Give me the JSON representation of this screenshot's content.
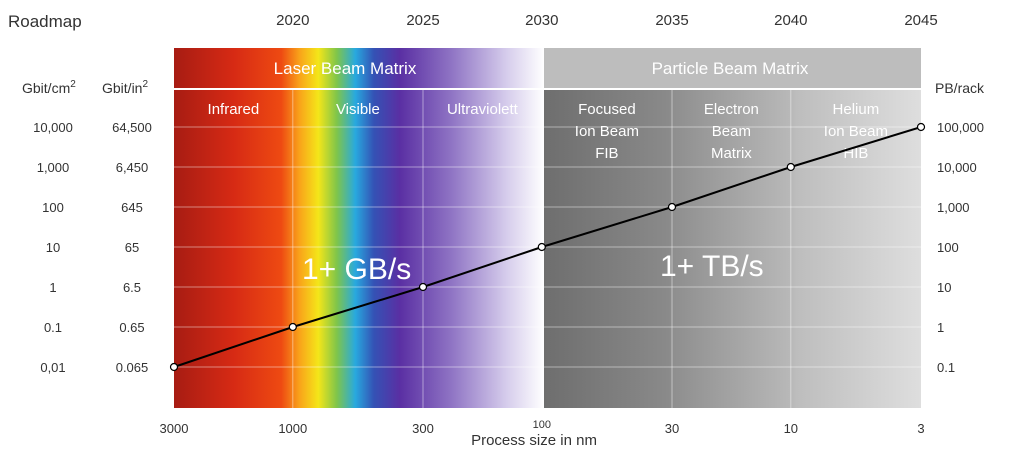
{
  "chart_data": {
    "type": "line",
    "title": "Roadmap",
    "xlabel": "Process size in nm",
    "x_scale": "log",
    "x": [
      3000,
      1000,
      300,
      100,
      30,
      10,
      3
    ],
    "years": [
      2020,
      2025,
      2030,
      2035,
      2040,
      2045
    ],
    "series": [
      {
        "values_pb_per_rack": [
          0.1,
          1,
          10,
          100,
          1000,
          10000,
          100000
        ]
      }
    ],
    "axes": {
      "left_outer_unit": "Gbit/cm",
      "left_inner_unit": "Gbit/in",
      "unit_superscript": "2",
      "right_unit": "PB/rack",
      "left_outer_ticks": [
        "10,000",
        "1,000",
        "100",
        "10",
        "1",
        "0.1",
        "0,01"
      ],
      "left_inner_ticks": [
        "64,500",
        "6,450",
        "645",
        "65",
        "6.5",
        "0.65",
        "0.065"
      ],
      "right_ticks": [
        "100,000",
        "10,000",
        "1,000",
        "100",
        "10",
        "1",
        "0.1"
      ]
    },
    "x_tick_labels": [
      "3000",
      "1000",
      "300",
      "100",
      "30",
      "10",
      "3"
    ],
    "bands": {
      "laser": "Laser Beam Matrix",
      "particle": "Particle Beam Matrix"
    },
    "zones": [
      {
        "lines": [
          "Infrared"
        ]
      },
      {
        "lines": [
          "Visible"
        ]
      },
      {
        "lines": [
          "Ultraviolett"
        ]
      },
      {
        "lines": [
          "Focused",
          "Ion Beam",
          "FIB"
        ]
      },
      {
        "lines": [
          "Electron",
          "Beam",
          "Matrix"
        ]
      },
      {
        "lines": [
          "Helium",
          "Ion Beam",
          "HIB"
        ]
      }
    ],
    "annotations": [
      "1+ GB/s",
      "1+ TB/s"
    ],
    "grid": true
  }
}
